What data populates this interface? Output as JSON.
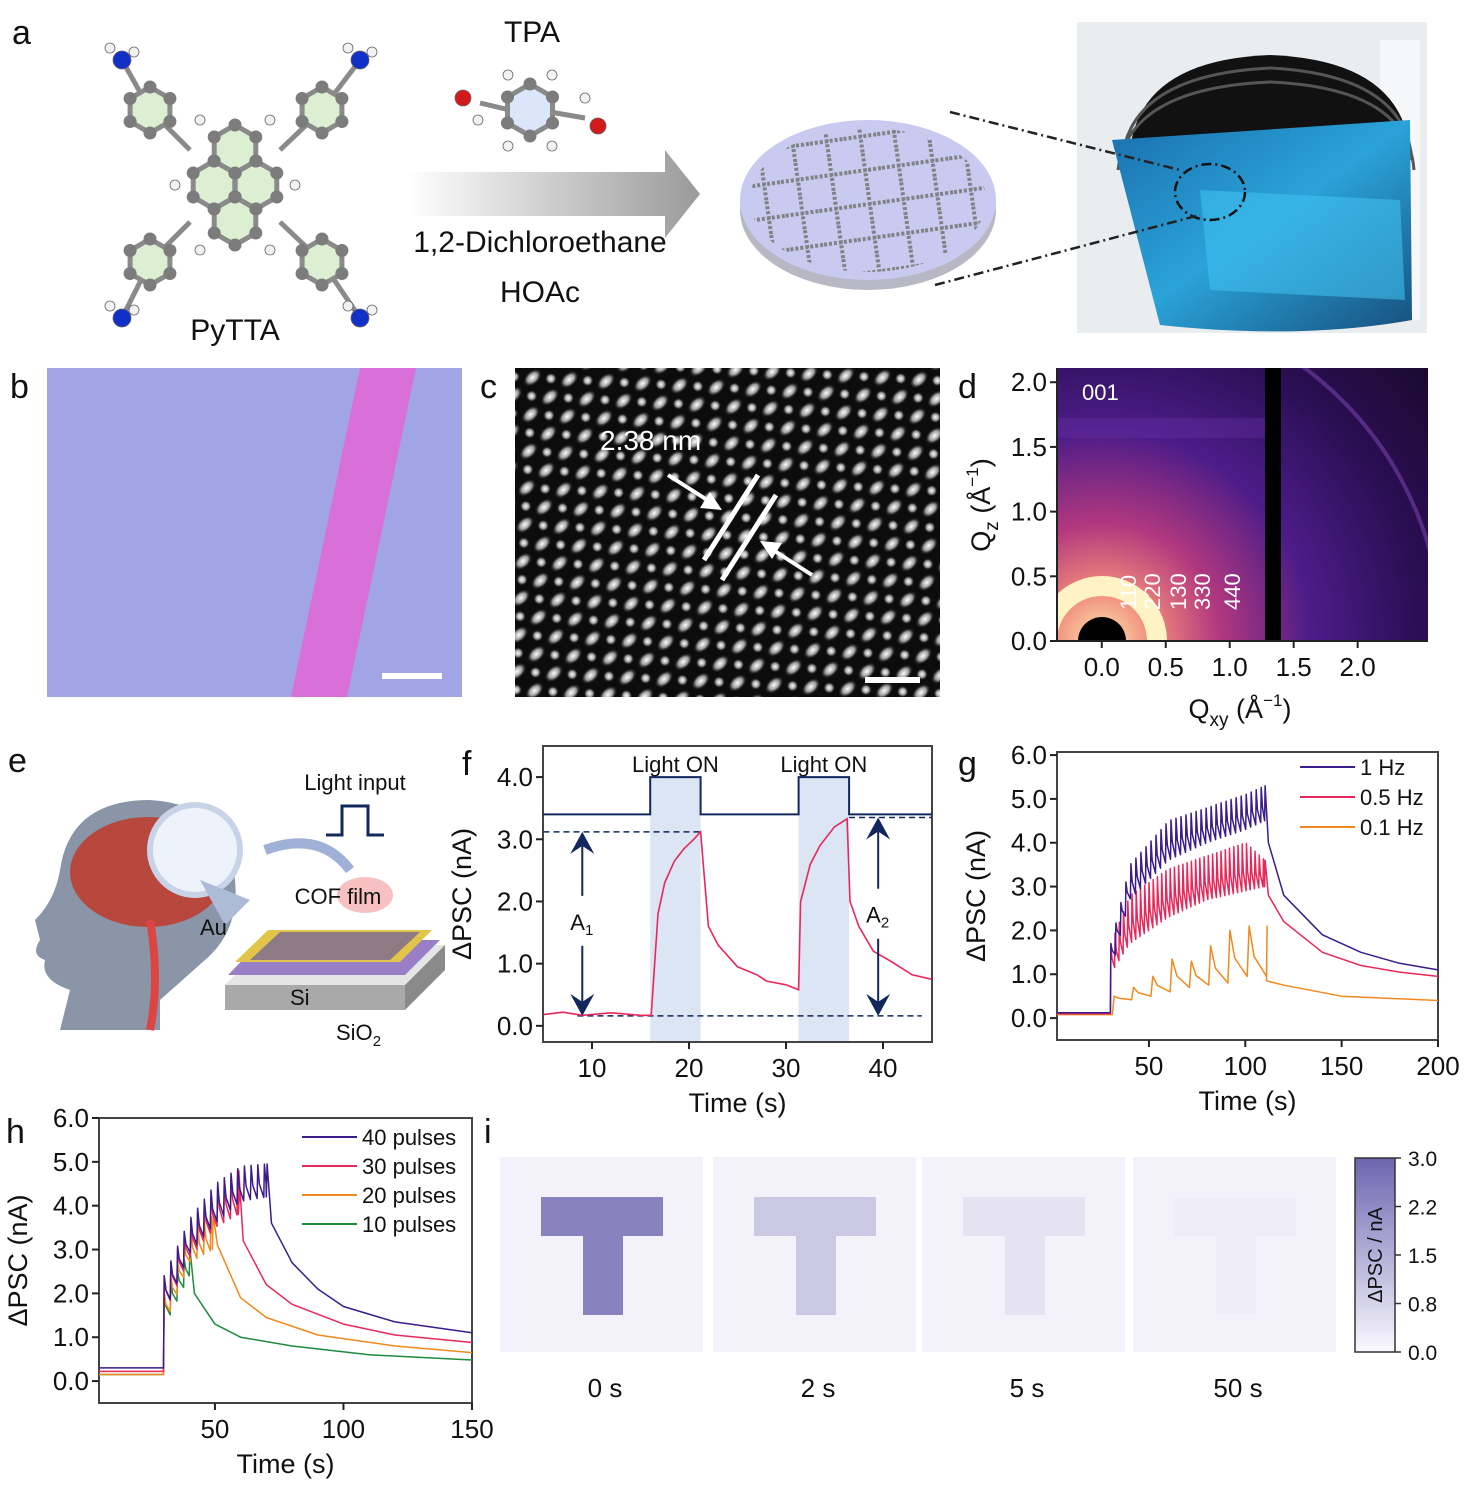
{
  "panels": {
    "a": {
      "label": "a",
      "molecule1": "PyTTA",
      "molecule2": "TPA",
      "solvent": "1,2-Dichloroethane",
      "catalyst": "HOAc"
    },
    "b": {
      "label": "b"
    },
    "c": {
      "label": "c",
      "spacing": "2.38 nm"
    },
    "d": {
      "label": "d"
    },
    "e": {
      "label": "e",
      "light_input": "Light input",
      "cof_film": "COF film",
      "au": "Au",
      "si": "Si",
      "sio2_main": "SiO",
      "sio2_sub": "2"
    },
    "f": {
      "label": "f"
    },
    "g": {
      "label": "g"
    },
    "h": {
      "label": "h"
    },
    "i": {
      "label": "i"
    }
  },
  "colors": {
    "purple": "#3b1c8c",
    "pink": "#e8285a",
    "orange": "#f0891e",
    "green": "#1e8a3c",
    "navy": "#12275c",
    "band": "#dbe5f3"
  },
  "chart_data": [
    {
      "id": "d",
      "type": "heatmap",
      "xlabel_main": "Q",
      "xlabel_sub": "xy",
      "xlabel_unit": " (Å",
      "xlabel_sup": "−1",
      "xlabel_close": ")",
      "ylabel_main": "Q",
      "ylabel_sub": "z",
      "ylabel_unit": " (Å",
      "ylabel_sup": "−1",
      "ylabel_close": ")",
      "xlim": [
        -0.35,
        2.55
      ],
      "ylim": [
        0,
        2.11
      ],
      "xticks": [
        {
          "v": 0,
          "t": "0.0"
        },
        {
          "v": 0.5,
          "t": "0.5"
        },
        {
          "v": 1.0,
          "t": "1.0"
        },
        {
          "v": 1.5,
          "t": "1.5"
        },
        {
          "v": 2.0,
          "t": "2.0"
        }
      ],
      "yticks": [
        {
          "v": 0,
          "t": "0.0"
        },
        {
          "v": 0.5,
          "t": "0.5"
        },
        {
          "v": 1.0,
          "t": "1.0"
        },
        {
          "v": 1.5,
          "t": "1.5"
        },
        {
          "v": 2.0,
          "t": "2.0"
        }
      ],
      "annotations": [
        "001",
        "110",
        "220",
        "130",
        "330",
        "440"
      ]
    },
    {
      "id": "f",
      "type": "line",
      "xlabel": "Time (s)",
      "ylabel": "ΔPSC (nA)",
      "xlim": [
        4.95,
        45.05
      ],
      "ylim": [
        -0.26,
        4.5
      ],
      "xticks": [
        {
          "v": 10,
          "t": "10"
        },
        {
          "v": 20,
          "t": "20"
        },
        {
          "v": 30,
          "t": "30"
        },
        {
          "v": 40,
          "t": "40"
        }
      ],
      "yticks": [
        {
          "v": 0,
          "t": "0.0"
        },
        {
          "v": 1,
          "t": "1.0"
        },
        {
          "v": 2,
          "t": "2.0"
        },
        {
          "v": 3,
          "t": "3.0"
        },
        {
          "v": 4,
          "t": "4.0"
        }
      ],
      "light_on_label": "Light ON",
      "light_on_intervals": [
        [
          16,
          21.2
        ],
        [
          31.3,
          36.5
        ]
      ],
      "light_signal_levels": [
        3.4,
        4.0
      ],
      "series": [
        {
          "name": "ΔPSC",
          "color": "#e8285a",
          "points": [
            [
              5,
              0.18
            ],
            [
              7,
              0.22
            ],
            [
              9,
              0.17
            ],
            [
              12,
              0.21
            ],
            [
              15,
              0.17
            ],
            [
              16.1,
              0.17
            ],
            [
              16.8,
              1.8
            ],
            [
              17.5,
              2.3
            ],
            [
              18.5,
              2.65
            ],
            [
              19.5,
              2.85
            ],
            [
              20.5,
              3.0
            ],
            [
              21.2,
              3.12
            ],
            [
              22,
              1.6
            ],
            [
              23,
              1.3
            ],
            [
              25,
              0.95
            ],
            [
              27,
              0.82
            ],
            [
              28,
              0.72
            ],
            [
              30,
              0.66
            ],
            [
              31.3,
              0.58
            ],
            [
              31.5,
              2.0
            ],
            [
              32.5,
              2.6
            ],
            [
              33.5,
              2.9
            ],
            [
              35,
              3.2
            ],
            [
              36.3,
              3.33
            ],
            [
              36.6,
              2.0
            ],
            [
              37.5,
              1.6
            ],
            [
              39,
              1.2
            ],
            [
              41,
              1.02
            ],
            [
              43,
              0.82
            ],
            [
              45,
              0.75
            ]
          ]
        }
      ],
      "reference_levels": {
        "A1_top": 3.12,
        "A2_top": 3.35,
        "baseline": 0.16
      },
      "A1_main": "A",
      "A1_sub": "1",
      "A2_main": "A",
      "A2_sub": "2"
    },
    {
      "id": "g",
      "type": "line",
      "xlabel": "Time (s)",
      "ylabel": "ΔPSC (nA)",
      "xlim": [
        2.3,
        200
      ],
      "ylim": [
        -0.5,
        6.07
      ],
      "xticks": [
        {
          "v": 50,
          "t": "50"
        },
        {
          "v": 100,
          "t": "100"
        },
        {
          "v": 150,
          "t": "150"
        },
        {
          "v": 200,
          "t": "200"
        }
      ],
      "yticks": [
        {
          "v": 0,
          "t": "0.0"
        },
        {
          "v": 1,
          "t": "1.0"
        },
        {
          "v": 2,
          "t": "2.0"
        },
        {
          "v": 3,
          "t": "3.0"
        },
        {
          "v": 4,
          "t": "4.0"
        },
        {
          "v": 5,
          "t": "5.0"
        },
        {
          "v": 6,
          "t": "6.0"
        }
      ],
      "legend_position": "top-right",
      "series": [
        {
          "name": "1 Hz",
          "color": "#3b1c8c",
          "baseline": 0.12,
          "start": 30,
          "end": 110,
          "period": 2.6,
          "upper": [
            [
              30,
              1.7
            ],
            [
              40,
              3.5
            ],
            [
              60,
              4.5
            ],
            [
              80,
              4.8
            ],
            [
              100,
              5.1
            ],
            [
              110,
              5.3
            ]
          ],
          "lower": [
            [
              30,
              1.0
            ],
            [
              40,
              2.7
            ],
            [
              60,
              3.6
            ],
            [
              80,
              4.0
            ],
            [
              100,
              4.3
            ],
            [
              110,
              4.5
            ]
          ],
          "decay": [
            [
              112,
              4.0
            ],
            [
              120,
              2.8
            ],
            [
              140,
              1.9
            ],
            [
              160,
              1.5
            ],
            [
              180,
              1.25
            ],
            [
              200,
              1.1
            ]
          ]
        },
        {
          "name": "0.5 Hz",
          "color": "#e8285a",
          "baseline": 0.1,
          "start": 30,
          "end": 110,
          "period": 2.2,
          "upper": [
            [
              30,
              1.7
            ],
            [
              40,
              2.8
            ],
            [
              60,
              3.4
            ],
            [
              80,
              3.7
            ],
            [
              100,
              4.0
            ],
            [
              110,
              3.6
            ]
          ],
          "lower": [
            [
              30,
              1.0
            ],
            [
              40,
              1.7
            ],
            [
              60,
              2.3
            ],
            [
              80,
              2.7
            ],
            [
              100,
              2.9
            ],
            [
              110,
              3.0
            ]
          ],
          "decay": [
            [
              112,
              2.8
            ],
            [
              120,
              2.2
            ],
            [
              140,
              1.5
            ],
            [
              160,
              1.2
            ],
            [
              180,
              1.05
            ],
            [
              200,
              0.95
            ]
          ]
        },
        {
          "name": "0.1 Hz",
          "color": "#f0891e",
          "baseline": 0.08,
          "start": 31,
          "end": 111,
          "period": 10,
          "upper": [
            [
              31,
              0.5
            ],
            [
              41,
              0.7
            ],
            [
              51,
              0.95
            ],
            [
              61,
              1.35
            ],
            [
              71,
              1.3
            ],
            [
              81,
              1.65
            ],
            [
              91,
              2.0
            ],
            [
              101,
              2.1
            ]
          ],
          "lower": [
            [
              31,
              0.28
            ],
            [
              41,
              0.42
            ],
            [
              51,
              0.5
            ],
            [
              61,
              0.6
            ],
            [
              71,
              0.7
            ],
            [
              81,
              0.75
            ],
            [
              91,
              0.8
            ],
            [
              101,
              0.95
            ]
          ],
          "decay": [
            [
              111,
              0.85
            ],
            [
              120,
              0.75
            ],
            [
              150,
              0.5
            ],
            [
              200,
              0.4
            ]
          ]
        }
      ]
    },
    {
      "id": "h",
      "type": "line",
      "xlabel": "Time (s)",
      "ylabel": "ΔPSC (nA)",
      "xlim": [
        4.9,
        150
      ],
      "ylim": [
        -0.5,
        6.0
      ],
      "xticks": [
        {
          "v": 50,
          "t": "50"
        },
        {
          "v": 100,
          "t": "100"
        },
        {
          "v": 150,
          "t": "150"
        }
      ],
      "yticks": [
        {
          "v": 0,
          "t": "0.0"
        },
        {
          "v": 1,
          "t": "1.0"
        },
        {
          "v": 2,
          "t": "2.0"
        },
        {
          "v": 3,
          "t": "3.0"
        },
        {
          "v": 4,
          "t": "4.0"
        },
        {
          "v": 5,
          "t": "5.0"
        },
        {
          "v": 6,
          "t": "6.0"
        }
      ],
      "legend_position": "top-right",
      "series": [
        {
          "name": "40 pulses",
          "color": "#3b1c8c",
          "baseline": 0.3,
          "start": 30,
          "end": 70,
          "period": 2.6,
          "upper": [
            [
              30,
              2.4
            ],
            [
              40,
              3.7
            ],
            [
              50,
              4.5
            ],
            [
              60,
              4.9
            ],
            [
              70,
              4.95
            ]
          ],
          "lower": [
            [
              30,
              1.5
            ],
            [
              40,
              2.9
            ],
            [
              50,
              3.6
            ],
            [
              60,
              4.1
            ],
            [
              70,
              4.2
            ]
          ],
          "decay": [
            [
              72,
              3.6
            ],
            [
              80,
              2.7
            ],
            [
              90,
              2.1
            ],
            [
              100,
              1.7
            ],
            [
              120,
              1.35
            ],
            [
              150,
              1.1
            ]
          ]
        },
        {
          "name": "30 pulses",
          "color": "#e8285a",
          "baseline": 0.22,
          "start": 30,
          "end": 59,
          "period": 2.6,
          "upper": [
            [
              30,
              2.4
            ],
            [
              40,
              3.6
            ],
            [
              50,
              4.4
            ],
            [
              59,
              4.8
            ]
          ],
          "lower": [
            [
              30,
              1.5
            ],
            [
              40,
              2.8
            ],
            [
              50,
              3.5
            ],
            [
              59,
              3.8
            ]
          ],
          "decay": [
            [
              61,
              3.2
            ],
            [
              70,
              2.2
            ],
            [
              80,
              1.75
            ],
            [
              100,
              1.3
            ],
            [
              120,
              1.05
            ],
            [
              150,
              0.88
            ]
          ]
        },
        {
          "name": "20 pulses",
          "color": "#f0891e",
          "baseline": 0.15,
          "start": 30,
          "end": 49,
          "period": 2.6,
          "upper": [
            [
              30,
              2.0
            ],
            [
              40,
              3.4
            ],
            [
              49,
              3.8
            ]
          ],
          "lower": [
            [
              30,
              1.2
            ],
            [
              40,
              2.7
            ],
            [
              49,
              3.0
            ]
          ],
          "decay": [
            [
              51,
              3.1
            ],
            [
              60,
              1.9
            ],
            [
              70,
              1.45
            ],
            [
              90,
              1.05
            ],
            [
              120,
              0.8
            ],
            [
              150,
              0.65
            ]
          ]
        },
        {
          "name": "10 pulses",
          "color": "#1e8a3c",
          "baseline": 0.15,
          "start": 30,
          "end": 40,
          "period": 2.6,
          "upper": [
            [
              30,
              2.0
            ],
            [
              40,
              3.0
            ]
          ],
          "lower": [
            [
              30,
              1.2
            ],
            [
              40,
              2.4
            ]
          ],
          "decay": [
            [
              42,
              2.0
            ],
            [
              50,
              1.3
            ],
            [
              60,
              1.0
            ],
            [
              80,
              0.8
            ],
            [
              110,
              0.6
            ],
            [
              150,
              0.48
            ]
          ]
        }
      ]
    },
    {
      "id": "i",
      "type": "heatmap",
      "colorbar_label": "ΔPSC / nA",
      "colorbar_range": [
        0.0,
        3.0
      ],
      "colorbar_ticks": [
        "3.0",
        "2.2",
        "1.5",
        "0.8",
        "0.0"
      ],
      "frames": [
        {
          "label": "0 s",
          "value": 2.4
        },
        {
          "label": "2 s",
          "value": 1.0
        },
        {
          "label": "5 s",
          "value": 0.45
        },
        {
          "label": "50 s",
          "value": 0.25
        }
      ]
    }
  ]
}
